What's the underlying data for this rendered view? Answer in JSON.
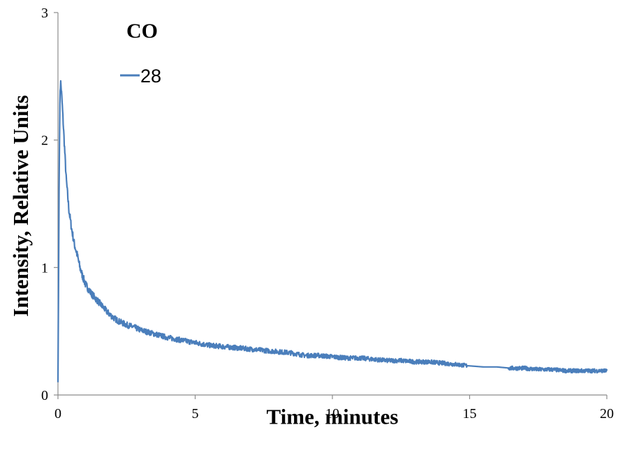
{
  "chart_data": {
    "type": "line",
    "title": "CO",
    "xlabel": "Time, minutes",
    "ylabel": "Intensity, Relative Units",
    "xlim": [
      0,
      20
    ],
    "ylim": [
      0,
      3
    ],
    "xticks": [
      "0",
      "5",
      "10",
      "15",
      "20"
    ],
    "yticks": [
      "0",
      "1",
      "2",
      "3"
    ],
    "grid": false,
    "legend_position": "top-left",
    "series": [
      {
        "name": "28",
        "color": "#4a7ebb",
        "x": [
          0.0,
          0.02,
          0.04,
          0.06,
          0.08,
          0.1,
          0.12,
          0.15,
          0.2,
          0.25,
          0.3,
          0.4,
          0.5,
          0.6,
          0.7,
          0.8,
          0.9,
          1.0,
          1.2,
          1.4,
          1.6,
          1.8,
          2.0,
          2.2,
          2.5,
          2.8,
          3.0,
          3.5,
          4.0,
          4.5,
          5.0,
          5.5,
          6.0,
          6.5,
          7.0,
          7.5,
          8.0,
          8.5,
          9.0,
          9.5,
          10.0,
          10.5,
          11.0,
          11.5,
          12.0,
          12.5,
          13.0,
          13.5,
          14.0,
          14.5,
          14.9,
          15.5,
          16.0,
          16.5,
          17.0,
          17.5,
          18.0,
          18.5,
          19.0,
          19.5,
          20.0
        ],
        "y": [
          0.1,
          0.8,
          1.6,
          2.1,
          2.4,
          2.45,
          2.4,
          2.3,
          2.1,
          1.9,
          1.7,
          1.45,
          1.3,
          1.18,
          1.1,
          1.0,
          0.93,
          0.87,
          0.8,
          0.75,
          0.7,
          0.65,
          0.61,
          0.58,
          0.55,
          0.53,
          0.51,
          0.48,
          0.45,
          0.43,
          0.41,
          0.39,
          0.38,
          0.37,
          0.36,
          0.35,
          0.34,
          0.33,
          0.31,
          0.31,
          0.3,
          0.29,
          0.29,
          0.28,
          0.27,
          0.27,
          0.26,
          0.26,
          0.25,
          0.24,
          0.23,
          0.22,
          0.22,
          0.21,
          0.21,
          0.2,
          0.2,
          0.19,
          0.19,
          0.19,
          0.19
        ]
      }
    ]
  }
}
